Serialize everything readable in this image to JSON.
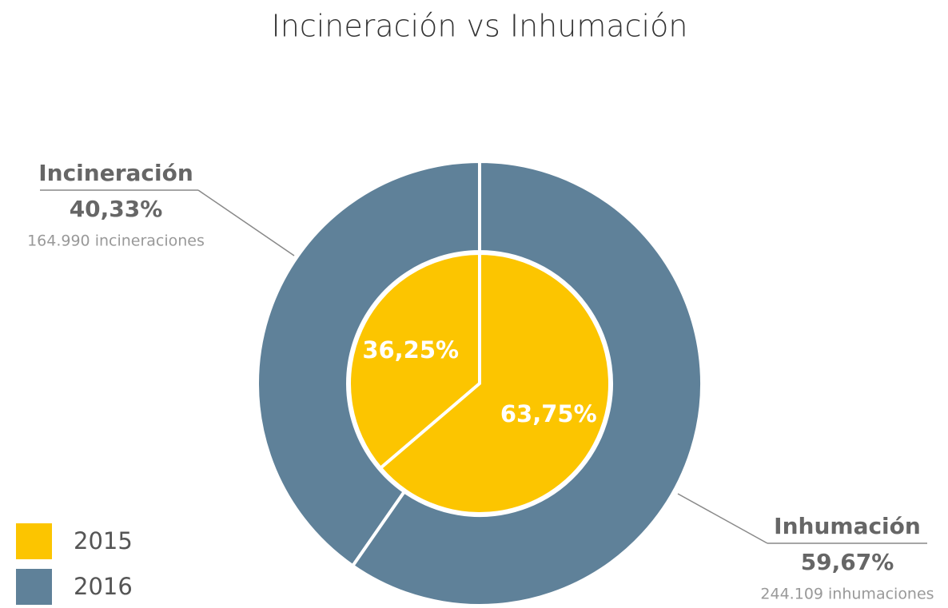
{
  "chart_data": {
    "type": "pie",
    "title": "Incineración vs Inhumación",
    "categories": [
      "Incineración",
      "Inhumación"
    ],
    "series": [
      {
        "name": "2015",
        "color": "#fcc500",
        "values": [
          36.25,
          63.75
        ],
        "value_labels": [
          "36,25%",
          "63,75%"
        ]
      },
      {
        "name": "2016",
        "color": "#5f8199",
        "values": [
          40.33,
          59.67
        ],
        "value_labels": [
          "40,33%",
          "59,67%"
        ]
      }
    ],
    "annotations": [
      "164.990 incineraciones",
      "244.109 inhumaciones"
    ],
    "legend": "bottom-left"
  }
}
